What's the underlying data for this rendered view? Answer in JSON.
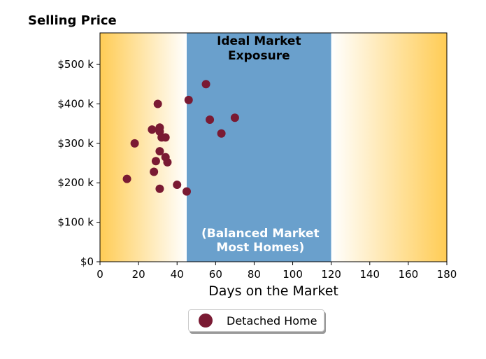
{
  "chart_data": {
    "type": "scatter",
    "title": "Selling Price",
    "xlabel": "Days on the Market",
    "ylabel": "",
    "xlim": [
      0,
      180
    ],
    "ylim": [
      0,
      580000
    ],
    "x_ticks": [
      0,
      20,
      40,
      60,
      80,
      100,
      120,
      140,
      160,
      180
    ],
    "x_tick_labels": [
      "0",
      "20",
      "40",
      "60",
      "80",
      "100",
      "120",
      "140",
      "160",
      "180"
    ],
    "y_ticks": [
      0,
      100000,
      200000,
      300000,
      400000,
      500000
    ],
    "y_tick_labels": [
      "$0",
      "$100 k",
      "$200 k",
      "$300 k",
      "$400 k",
      "$500 k"
    ],
    "grid": false,
    "legend_position": "below",
    "series": [
      {
        "name": "Detached Home",
        "color": "#7a1a33",
        "points": [
          {
            "x": 14,
            "y": 210000
          },
          {
            "x": 18,
            "y": 300000
          },
          {
            "x": 27,
            "y": 335000
          },
          {
            "x": 28,
            "y": 228000
          },
          {
            "x": 29,
            "y": 255000
          },
          {
            "x": 30,
            "y": 400000
          },
          {
            "x": 31,
            "y": 340000
          },
          {
            "x": 31,
            "y": 330000
          },
          {
            "x": 31,
            "y": 280000
          },
          {
            "x": 31,
            "y": 185000
          },
          {
            "x": 32,
            "y": 315000
          },
          {
            "x": 34,
            "y": 315000
          },
          {
            "x": 34,
            "y": 265000
          },
          {
            "x": 35,
            "y": 252000
          },
          {
            "x": 40,
            "y": 195000
          },
          {
            "x": 45,
            "y": 178000
          },
          {
            "x": 46,
            "y": 410000
          },
          {
            "x": 55,
            "y": 450000
          },
          {
            "x": 57,
            "y": 360000
          },
          {
            "x": 63,
            "y": 325000
          },
          {
            "x": 70,
            "y": 365000
          }
        ]
      }
    ],
    "regions": {
      "ideal_start": 45,
      "ideal_end": 120,
      "ideal_color": "#6aa0cc",
      "edge_color": "#ffcc55",
      "ideal_top_label": [
        "Ideal Market",
        "Exposure"
      ],
      "ideal_bottom_label": [
        "(Balanced Market",
        "Most Homes)"
      ]
    }
  }
}
